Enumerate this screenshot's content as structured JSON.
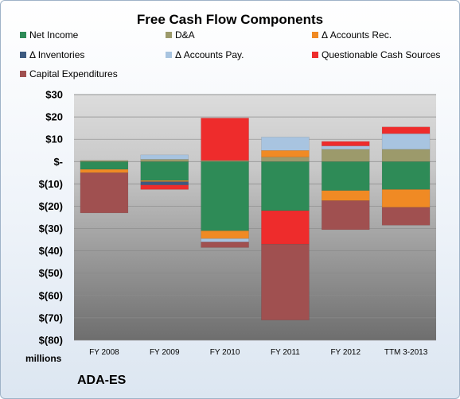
{
  "chart_data": {
    "type": "bar",
    "stacked": true,
    "title": "Free Cash Flow Components",
    "y_unit_label": "millions",
    "footer_label": "ADA-ES",
    "categories": [
      "FY 2008",
      "FY 2009",
      "FY 2010",
      "FY 2011",
      "FY 2012",
      "TTM 3-2013"
    ],
    "ylim": [
      -80,
      30
    ],
    "y_ticks": [
      30,
      20,
      10,
      0,
      -10,
      -20,
      -30,
      -40,
      -50,
      -60,
      -70,
      -80
    ],
    "y_tick_labels": [
      "$30",
      "$20",
      "$10",
      "$-",
      "$(10)",
      "$(20)",
      "$(30)",
      "$(40)",
      "$(50)",
      "$(60)",
      "$(70)",
      "$(80)"
    ],
    "grid": true,
    "legend_position": "top",
    "series": [
      {
        "name": "Net Income",
        "color": "#2e8b57",
        "values": [
          -3.5,
          -8.5,
          -31,
          -22,
          -13,
          -12.5
        ]
      },
      {
        "name": "D&A",
        "color": "#9c9a6b",
        "values": [
          0.5,
          1,
          0.5,
          2,
          5.5,
          5.5
        ]
      },
      {
        "name": "Δ Accounts Rec.",
        "color": "#f08a24",
        "values": [
          -1.5,
          -0.5,
          -3.5,
          3,
          -4.5,
          -8
        ]
      },
      {
        "name": "Δ Inventories",
        "color": "#3d5a80",
        "values": [
          0,
          -1.5,
          0,
          0,
          0,
          0
        ]
      },
      {
        "name": "Δ Accounts Pay.",
        "color": "#a8c4e0",
        "values": [
          0,
          2,
          -1.5,
          6,
          1.5,
          7
        ]
      },
      {
        "name": "Questionable Cash Sources",
        "color": "#ee2c2c",
        "values": [
          0,
          -2,
          19,
          -15,
          2,
          3
        ]
      },
      {
        "name": "Capital Expenditures",
        "color": "#a05050",
        "values": [
          -18,
          0,
          -2.5,
          -34,
          -13,
          -8
        ]
      }
    ]
  }
}
